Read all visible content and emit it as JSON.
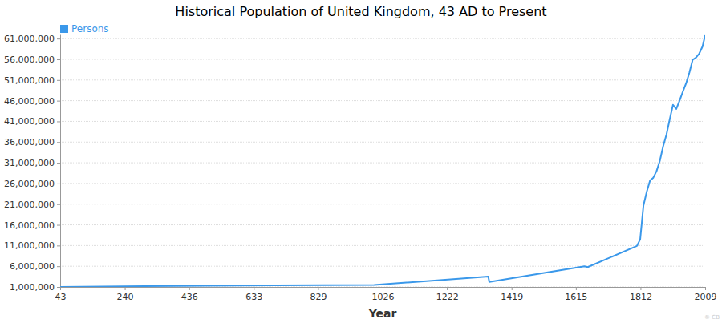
{
  "chart_data": {
    "type": "line",
    "title": "Historical Population of United Kingdom, 43 AD to Present",
    "x_label": "Year",
    "x": [
      43,
      300,
      700,
      1000,
      1348,
      1351,
      1641,
      1651,
      1801,
      1811,
      1821,
      1831,
      1841,
      1851,
      1861,
      1871,
      1881,
      1891,
      1901,
      1911,
      1921,
      1931,
      1941,
      1951,
      1961,
      1971,
      1981,
      1991,
      2001,
      2009
    ],
    "series": [
      {
        "name": "Persons",
        "color": "#3a98ea",
        "values": [
          1000000,
          1200000,
          1400000,
          1500000,
          3500000,
          2200000,
          6000000,
          5800000,
          10900000,
          12500000,
          20700000,
          24000000,
          26700000,
          27400000,
          29000000,
          31500000,
          35000000,
          37800000,
          41500000,
          45000000,
          44000000,
          46000000,
          48200000,
          50200000,
          52800000,
          55900000,
          56400000,
          57400000,
          59100000,
          61800000
        ]
      }
    ],
    "xlim": [
      43,
      2009
    ],
    "xticks": [
      43,
      240,
      436,
      633,
      829,
      1026,
      1222,
      1419,
      1615,
      1812,
      2009
    ],
    "ylim": [
      1000000,
      62000000
    ],
    "yticks": [
      {
        "value": 1000000,
        "label": "1,000,000"
      },
      {
        "value": 6000000,
        "label": "6,000,000"
      },
      {
        "value": 11000000,
        "label": "11,000,000"
      },
      {
        "value": 16000000,
        "label": "16,000,000"
      },
      {
        "value": 21000000,
        "label": "21,000,000"
      },
      {
        "value": 26000000,
        "label": "26,000,000"
      },
      {
        "value": 31000000,
        "label": "31,000,000"
      },
      {
        "value": 36000000,
        "label": "36,000,000"
      },
      {
        "value": 41000000,
        "label": "41,000,000"
      },
      {
        "value": 46000000,
        "label": "46,000,000"
      },
      {
        "value": 51000000,
        "label": "51,000,000"
      },
      {
        "value": 56000000,
        "label": "56,000,000"
      },
      {
        "value": 61000000,
        "label": "61,000,000"
      }
    ],
    "grid": true,
    "legend": "top-left",
    "annotations": [
      "© CB"
    ]
  }
}
